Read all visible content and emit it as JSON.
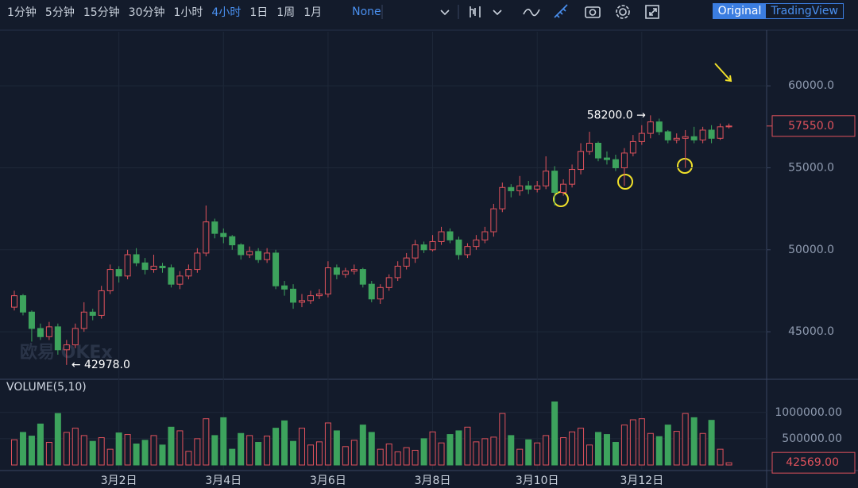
{
  "toolbar": {
    "intervals": [
      "1分钟",
      "5分钟",
      "15分钟",
      "30分钟",
      "1小时",
      "4小时",
      "1日",
      "1周",
      "1月"
    ],
    "active_interval": "4小时",
    "indicator": "None",
    "views": [
      "Original",
      "TradingView"
    ],
    "active_view": "Original"
  },
  "chart_data": {
    "type": "candlestick",
    "watermark": "欧易 OKEx",
    "volume_title": "VOLUME(5,10)",
    "categories": [
      null,
      null,
      null,
      null,
      null,
      null,
      null,
      null,
      null,
      null,
      null,
      null,
      "3月2日",
      null,
      null,
      null,
      null,
      null,
      null,
      null,
      null,
      null,
      null,
      null,
      "3月4日",
      null,
      null,
      null,
      null,
      null,
      null,
      null,
      null,
      null,
      null,
      null,
      "3月6日",
      null,
      null,
      null,
      null,
      null,
      null,
      null,
      null,
      null,
      null,
      null,
      "3月8日",
      null,
      null,
      null,
      null,
      null,
      null,
      null,
      null,
      null,
      null,
      null,
      "3月10日",
      null,
      null,
      null,
      null,
      null,
      null,
      null,
      null,
      null,
      null,
      null,
      "3月12日",
      null,
      null,
      null,
      null,
      null,
      null,
      null,
      null,
      null,
      null
    ],
    "open": [
      46500,
      47200,
      46200,
      45200,
      44700,
      45300,
      43900,
      44200,
      45200,
      46200,
      46000,
      47500,
      48800,
      48400,
      49700,
      49200,
      48800,
      49000,
      48900,
      47900,
      48400,
      48800,
      49800,
      51700,
      51000,
      50800,
      50300,
      49700,
      49900,
      49400,
      49800,
      47800,
      47600,
      46800,
      46900,
      47200,
      47300,
      48900,
      48500,
      48700,
      48800,
      47900,
      47000,
      47700,
      48300,
      49000,
      49500,
      50300,
      50000,
      50500,
      51100,
      50600,
      49700,
      50200,
      50600,
      51100,
      52500,
      53800,
      53600,
      53900,
      53700,
      53900,
      54800,
      53500,
      54000,
      54900,
      56000,
      56500,
      55600,
      55500,
      55000,
      55900,
      56600,
      57100,
      57800,
      57200,
      56700,
      56800,
      56900,
      56700,
      57300,
      56800,
      57500
    ],
    "high": [
      47500,
      47300,
      46300,
      45500,
      45600,
      45500,
      44500,
      45500,
      46800,
      46400,
      47800,
      49100,
      49000,
      50000,
      50100,
      49500,
      49700,
      49200,
      49100,
      48700,
      49100,
      50100,
      52700,
      51900,
      51300,
      50900,
      50400,
      50200,
      50100,
      50100,
      50000,
      48100,
      47900,
      47300,
      47500,
      47600,
      49300,
      49100,
      48900,
      49100,
      48900,
      48100,
      47900,
      48500,
      49300,
      49800,
      50600,
      50500,
      50900,
      51400,
      51300,
      50800,
      50400,
      50900,
      51400,
      52800,
      54100,
      54000,
      54500,
      54200,
      54200,
      55700,
      55100,
      54300,
      55200,
      56500,
      57200,
      56600,
      56000,
      55800,
      56200,
      57000,
      57600,
      58200,
      58000,
      57300,
      57100,
      57300,
      57500,
      57500,
      57600,
      57700,
      57700
    ],
    "low": [
      46300,
      46000,
      44400,
      44500,
      44500,
      43600,
      42978,
      44000,
      45000,
      45700,
      45800,
      47300,
      48000,
      48200,
      49000,
      48500,
      48600,
      48600,
      47700,
      47600,
      48200,
      48600,
      49600,
      50700,
      50400,
      50000,
      49400,
      49500,
      49200,
      49200,
      47600,
      47200,
      46400,
      46500,
      46700,
      47000,
      47100,
      48200,
      48300,
      48500,
      47700,
      46800,
      46700,
      47500,
      48100,
      48800,
      49200,
      49800,
      49900,
      50300,
      50400,
      49400,
      49500,
      50000,
      50400,
      50800,
      52300,
      53200,
      53300,
      53400,
      53500,
      53700,
      52700,
      53300,
      53800,
      54600,
      55800,
      55400,
      55200,
      54800,
      53900,
      55700,
      56400,
      56800,
      57000,
      56500,
      56500,
      55000,
      56500,
      56500,
      56500,
      56700,
      57400
    ],
    "close": [
      47200,
      46200,
      45200,
      44700,
      45300,
      43900,
      44200,
      45200,
      46200,
      46000,
      47500,
      48800,
      48400,
      49700,
      49200,
      48800,
      49000,
      48900,
      47900,
      48400,
      48800,
      49800,
      51700,
      51000,
      50800,
      50300,
      49700,
      49900,
      49400,
      49800,
      47800,
      47600,
      46800,
      46900,
      47200,
      47300,
      48900,
      48500,
      48700,
      48800,
      47900,
      47000,
      47700,
      48300,
      49000,
      49500,
      50300,
      50000,
      50500,
      51100,
      50600,
      49700,
      50200,
      50600,
      51100,
      52500,
      53800,
      53600,
      53900,
      53700,
      53900,
      54800,
      53500,
      54000,
      54900,
      56000,
      56500,
      55600,
      55500,
      55000,
      55900,
      56600,
      57100,
      57800,
      57200,
      56700,
      56800,
      56900,
      56700,
      57300,
      56800,
      57500,
      57550
    ],
    "volume": [
      480000,
      620000,
      550000,
      780000,
      430000,
      980000,
      620000,
      700000,
      560000,
      450000,
      520000,
      300000,
      610000,
      580000,
      400000,
      470000,
      560000,
      380000,
      720000,
      650000,
      260000,
      500000,
      880000,
      560000,
      900000,
      300000,
      600000,
      560000,
      430000,
      550000,
      700000,
      840000,
      450000,
      700000,
      380000,
      440000,
      800000,
      650000,
      350000,
      470000,
      760000,
      620000,
      300000,
      400000,
      250000,
      330000,
      280000,
      500000,
      630000,
      420000,
      580000,
      650000,
      720000,
      440000,
      500000,
      530000,
      980000,
      560000,
      300000,
      480000,
      420000,
      560000,
      1200000,
      520000,
      630000,
      700000,
      380000,
      620000,
      580000,
      430000,
      760000,
      860000,
      880000,
      600000,
      540000,
      760000,
      640000,
      980000,
      900000,
      600000,
      850000,
      300000,
      42569
    ],
    "up_color": "#e0525c",
    "down_color": "#3da35d",
    "ylim": [
      42100,
      63300
    ],
    "yticks": [
      {
        "value": 45000,
        "label": "45000.0"
      },
      {
        "value": 50000,
        "label": "50000.0"
      },
      {
        "value": 55000,
        "label": "55000.0"
      },
      {
        "value": 60000,
        "label": "60000.0"
      }
    ],
    "volume_ylim": [
      0,
      1600000
    ],
    "volume_ticks": [
      {
        "value": 500000,
        "label": "500000.00"
      },
      {
        "value": 1000000,
        "label": "1000000.00"
      }
    ],
    "max_label": {
      "value": 58200,
      "label": "58200.0 →"
    },
    "min_label": {
      "value": 42978,
      "label": "← 42978.0"
    },
    "last_price": {
      "value": 57550,
      "label": "57550.0"
    },
    "last_volume": {
      "value": 42569,
      "label": "42569.00"
    },
    "grid": true
  }
}
